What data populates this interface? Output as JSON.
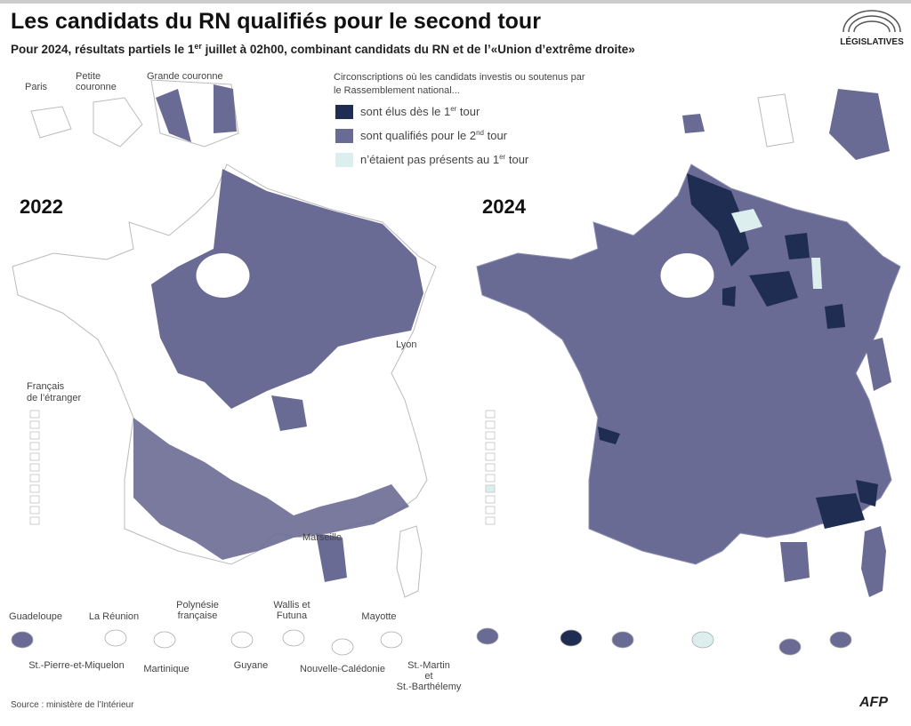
{
  "header": {
    "title": "Les candidats du RN qualifiés pour le second tour",
    "subtitle": {
      "before": "Pour 2024, résultats partiels le 1",
      "sup": "er",
      "after": " juillet à 02h00, combinant candidats du RN et de l’«Union d’extrême droite»"
    },
    "logo": "LÉGISLATIVES"
  },
  "insets": [
    "Paris",
    "Petite couronne",
    "Grande couronne"
  ],
  "legend": {
    "title": "Circonscriptions où les candidats investis ou soutenus par le Rassemblement national...",
    "items": [
      {
        "before": "sont élus dès le 1",
        "sup": "er",
        "after": " tour",
        "color": "#1f2d52"
      },
      {
        "before": "sont qualifiés pour le 2",
        "sup": "nd",
        "after": " tour",
        "color": "#6a6b94"
      },
      {
        "before": "n’étaient pas présents au 1",
        "sup": "er",
        "after": " tour",
        "color": "#dcefee"
      }
    ]
  },
  "maps": [
    {
      "year": "2022"
    },
    {
      "year": "2024"
    }
  ],
  "labels": {
    "lyon": "Lyon",
    "marseille": "Marseille",
    "abroad": "Français de l’étranger"
  },
  "overseas_top": [
    "Guadeloupe",
    "La Réunion",
    "Polynésie française",
    "Wallis et Futuna",
    "Mayotte"
  ],
  "overseas_bottom": [
    "St.-Pierre-et-Miquelon",
    "Martinique",
    "Guyane",
    "Nouvelle-Calédonie",
    "St.-Martin et St.-Barthélemy"
  ],
  "source": "Source : ministère de l’Intérieur",
  "credit": "AFP"
}
